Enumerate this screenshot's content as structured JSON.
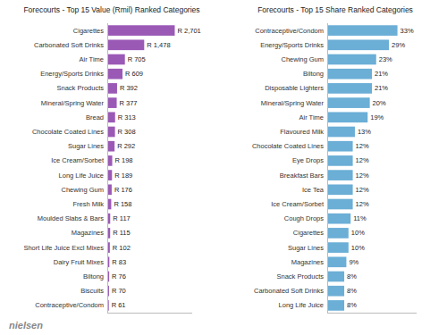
{
  "chart_data": [
    {
      "type": "bar",
      "orientation": "horizontal",
      "title": "Forecourts - Top 15 Value (Rmil) Ranked Categories",
      "categories": [
        "Cigarettes",
        "Carbonated Soft Drinks",
        "Air Time",
        "Energy/Sports Drinks",
        "Snack Products",
        "Mineral/Spring Water",
        "Bread",
        "Chocolate Coated Lines",
        "Sugar Lines",
        "Ice Cream/Sorbet",
        "Long Life Juice",
        "Chewing Gum",
        "Fresh Milk",
        "Moulded Slabs & Bars",
        "Magazines",
        "Short Life Juice Excl Mixes",
        "Dairy Fruit Mixes",
        "Biltong",
        "Biscuits",
        "Contraceptive/Condom"
      ],
      "values": [
        2701,
        1478,
        705,
        609,
        392,
        377,
        313,
        308,
        292,
        198,
        189,
        176,
        158,
        117,
        115,
        102,
        83,
        76,
        70,
        61
      ],
      "value_labels": [
        "R 2,701",
        "R 1,478",
        "R 705",
        "R 609",
        "R 392",
        "R 377",
        "R 313",
        "R 308",
        "R 292",
        "R 198",
        "R 189",
        "R 176",
        "R 158",
        "R 117",
        "R 115",
        "R 102",
        "R 83",
        "R 76",
        "R 70",
        "R 61"
      ],
      "color": "#9B59B6",
      "xlim": [
        0,
        3400
      ],
      "data_labels": true,
      "tick_labels": "y",
      "grid": false,
      "annotations": [
        "nielsen"
      ]
    },
    {
      "type": "bar",
      "orientation": "horizontal",
      "title": "Forecourts - Top 15 Share Ranked Categories",
      "categories": [
        "Contraceptive/Condom",
        "Energy/Sports Drinks",
        "Chewing Gum",
        "Biltong",
        "Disposable Lighters",
        "Mineral/Spring Water",
        "Air Time",
        "Flavoured Milk",
        "Chocolate Coated Lines",
        "Eye Drops",
        "Breakfast Bars",
        "Ice Tea",
        "Ice Cream/Sorbet",
        "Cough Drops",
        "Cigarettes",
        "Sugar Lines",
        "Magazines",
        "Snack Products",
        "Carbonated Soft Drinks",
        "Long Life Juice"
      ],
      "values": [
        33,
        29,
        23,
        21,
        21,
        20,
        19,
        13,
        12,
        12,
        12,
        12,
        12,
        11,
        10,
        10,
        9,
        8,
        8,
        8
      ],
      "value_labels": [
        "33%",
        "29%",
        "23%",
        "21%",
        "21%",
        "20%",
        "19%",
        "13%",
        "12%",
        "12%",
        "12%",
        "12%",
        "12%",
        "11%",
        "10%",
        "10%",
        "9%",
        "8%",
        "8%",
        "8%"
      ],
      "color": "#6BAED6",
      "xlim": [
        0,
        42
      ],
      "data_labels": true,
      "tick_labels": "y",
      "grid": false
    }
  ]
}
